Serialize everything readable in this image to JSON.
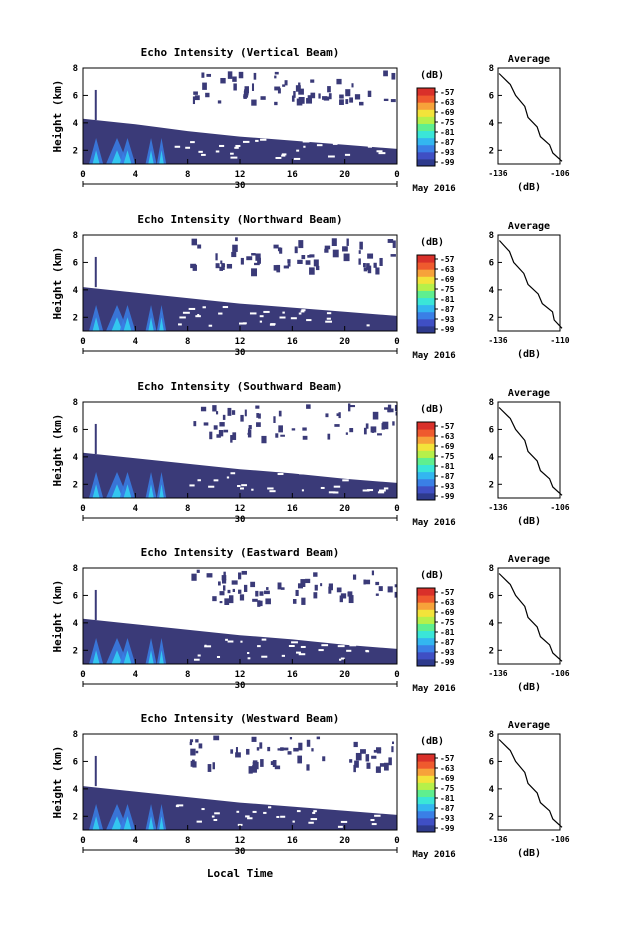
{
  "figure": {
    "date_label": "May 2016",
    "xlabel": "Local Time",
    "colorbar_unit": "(dB)",
    "colorbar_ticks": [
      "-57",
      "-63",
      "-69",
      "-75",
      "-81",
      "-87",
      "-93",
      "-99"
    ],
    "colorbar_colors": [
      "#2e3a8c",
      "#3f4fc4",
      "#3a7fe6",
      "#33b6f0",
      "#3ae6d8",
      "#5fef8f",
      "#b6f04a",
      "#f3e33a",
      "#f7a23a",
      "#ef5a2e",
      "#d9302a"
    ],
    "x_ticks": [
      "0",
      "4",
      "8",
      "12",
      "16",
      "20",
      "0"
    ],
    "x_day_label": "30",
    "y_ticks": [
      "2",
      "4",
      "6",
      "8"
    ],
    "ylabel": "Height (km)",
    "avg_title": "Average",
    "avg_xlabel": "(dB)",
    "panels": [
      {
        "title": "Echo Intensity (Vertical Beam)",
        "avg_xticks": [
          "-136",
          "-106"
        ],
        "show_date": true
      },
      {
        "title": "Echo Intensity (Northward Beam)",
        "avg_xticks": [
          "-136",
          "-110"
        ],
        "show_date": true
      },
      {
        "title": "Echo Intensity (Southward Beam)",
        "avg_xticks": [
          "-136",
          "-106"
        ],
        "show_date": true
      },
      {
        "title": "Echo Intensity (Eastward Beam)",
        "avg_xticks": [
          "-136",
          "-106"
        ],
        "show_date": true
      },
      {
        "title": "Echo Intensity (Westward Beam)",
        "avg_xticks": [
          "-136",
          "-106"
        ],
        "show_date": true
      }
    ]
  },
  "chart_data": [
    {
      "type": "heatmap",
      "title": "Echo Intensity (Vertical Beam)",
      "ylabel": "Height (km)",
      "x_range_hours": [
        0,
        24
      ],
      "ylim": [
        1,
        8
      ],
      "layer_top_km": [
        {
          "x": 0,
          "y": 4.3
        },
        {
          "x": 4,
          "y": 3.9
        },
        {
          "x": 8,
          "y": 3.4
        },
        {
          "x": 12,
          "y": 3.0
        },
        {
          "x": 16,
          "y": 2.7
        },
        {
          "x": 20,
          "y": 2.4
        },
        {
          "x": 24,
          "y": 2.1
        }
      ],
      "colorbar_range_dB": [
        -99,
        -57
      ]
    },
    {
      "type": "line",
      "title": "Average",
      "xlabel": "(dB)",
      "xlim": [
        -136,
        -106
      ],
      "ylim": [
        1,
        8
      ],
      "x": [
        -135,
        -131,
        -127,
        -124,
        -121,
        -118,
        -115,
        -112,
        -109,
        -106
      ],
      "y": [
        7.6,
        6.8,
        6.0,
        5.2,
        4.4,
        3.7,
        3.0,
        2.4,
        1.8,
        1.2
      ]
    },
    {
      "type": "heatmap",
      "title": "Echo Intensity (Northward Beam)",
      "ylabel": "Height (km)",
      "x_range_hours": [
        0,
        24
      ],
      "ylim": [
        1,
        8
      ],
      "layer_top_km": [
        {
          "x": 0,
          "y": 4.2
        },
        {
          "x": 4,
          "y": 3.8
        },
        {
          "x": 8,
          "y": 3.4
        },
        {
          "x": 12,
          "y": 3.0
        },
        {
          "x": 16,
          "y": 2.7
        },
        {
          "x": 20,
          "y": 2.4
        },
        {
          "x": 24,
          "y": 2.1
        }
      ],
      "colorbar_range_dB": [
        -99,
        -57
      ]
    },
    {
      "type": "line",
      "title": "Average",
      "xlabel": "(dB)",
      "xlim": [
        -136,
        -110
      ],
      "ylim": [
        1,
        8
      ],
      "x": [
        -135,
        -132,
        -129,
        -126,
        -123,
        -120,
        -117,
        -114,
        -112,
        -110
      ],
      "y": [
        7.6,
        6.8,
        6.0,
        5.2,
        4.4,
        3.7,
        3.0,
        2.4,
        1.8,
        1.2
      ]
    },
    {
      "type": "heatmap",
      "title": "Echo Intensity (Southward Beam)",
      "ylabel": "Height (km)",
      "x_range_hours": [
        0,
        24
      ],
      "ylim": [
        1,
        8
      ],
      "layer_top_km": [
        {
          "x": 0,
          "y": 4.3
        },
        {
          "x": 4,
          "y": 3.9
        },
        {
          "x": 8,
          "y": 3.5
        },
        {
          "x": 12,
          "y": 3.1
        },
        {
          "x": 16,
          "y": 2.8
        },
        {
          "x": 20,
          "y": 2.4
        },
        {
          "x": 24,
          "y": 2.1
        }
      ],
      "colorbar_range_dB": [
        -99,
        -57
      ]
    },
    {
      "type": "line",
      "title": "Average",
      "xlabel": "(dB)",
      "xlim": [
        -136,
        -106
      ],
      "ylim": [
        1,
        8
      ],
      "x": [
        -135,
        -131,
        -127,
        -124,
        -121,
        -118,
        -115,
        -112,
        -109,
        -106
      ],
      "y": [
        7.6,
        6.8,
        6.0,
        5.2,
        4.4,
        3.7,
        3.0,
        2.4,
        1.8,
        1.2
      ]
    },
    {
      "type": "heatmap",
      "title": "Echo Intensity (Eastward Beam)",
      "ylabel": "Height (km)",
      "x_range_hours": [
        0,
        24
      ],
      "ylim": [
        1,
        8
      ],
      "layer_top_km": [
        {
          "x": 0,
          "y": 4.3
        },
        {
          "x": 4,
          "y": 3.9
        },
        {
          "x": 8,
          "y": 3.5
        },
        {
          "x": 12,
          "y": 3.1
        },
        {
          "x": 16,
          "y": 2.8
        },
        {
          "x": 20,
          "y": 2.4
        },
        {
          "x": 24,
          "y": 2.1
        }
      ],
      "colorbar_range_dB": [
        -99,
        -57
      ]
    },
    {
      "type": "line",
      "title": "Average",
      "xlabel": "(dB)",
      "xlim": [
        -136,
        -106
      ],
      "ylim": [
        1,
        8
      ],
      "x": [
        -135,
        -131,
        -127,
        -124,
        -121,
        -118,
        -115,
        -112,
        -109,
        -106
      ],
      "y": [
        7.6,
        6.8,
        6.0,
        5.2,
        4.4,
        3.7,
        3.0,
        2.4,
        1.8,
        1.2
      ]
    },
    {
      "type": "heatmap",
      "title": "Echo Intensity (Westward Beam)",
      "ylabel": "Height (km)",
      "x_range_hours": [
        0,
        24
      ],
      "ylim": [
        1,
        8
      ],
      "layer_top_km": [
        {
          "x": 0,
          "y": 4.2
        },
        {
          "x": 4,
          "y": 3.8
        },
        {
          "x": 8,
          "y": 3.4
        },
        {
          "x": 12,
          "y": 3.0
        },
        {
          "x": 16,
          "y": 2.7
        },
        {
          "x": 20,
          "y": 2.4
        },
        {
          "x": 24,
          "y": 2.1
        }
      ],
      "colorbar_range_dB": [
        -99,
        -57
      ]
    },
    {
      "type": "line",
      "title": "Average",
      "xlabel": "(dB)",
      "xlim": [
        -136,
        -106
      ],
      "ylim": [
        1,
        8
      ],
      "x": [
        -135,
        -131,
        -127,
        -124,
        -121,
        -118,
        -115,
        -112,
        -109,
        -106
      ],
      "y": [
        7.6,
        6.8,
        6.0,
        5.2,
        4.4,
        3.7,
        3.0,
        2.4,
        1.8,
        1.2
      ]
    }
  ]
}
